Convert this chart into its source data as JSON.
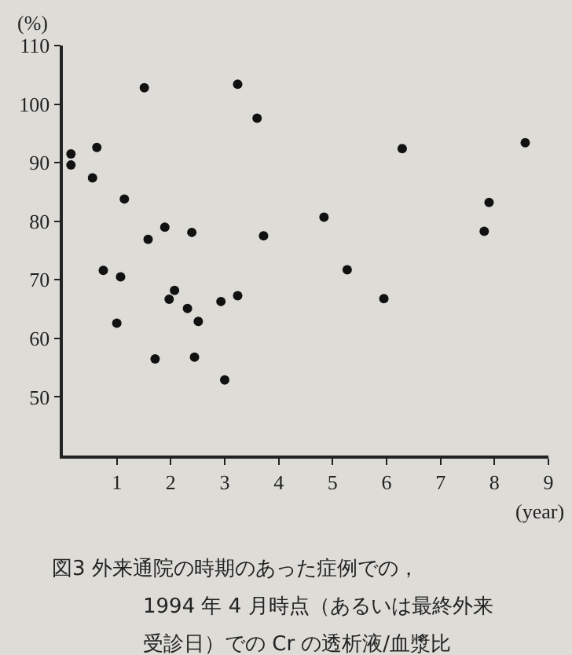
{
  "chart_data": {
    "type": "scatter",
    "x": [
      0.15,
      0.15,
      0.63,
      0.55,
      1.14,
      0.75,
      1.07,
      1.0,
      1.51,
      1.58,
      1.89,
      1.71,
      1.97,
      2.07,
      2.39,
      2.31,
      2.51,
      2.44,
      2.93,
      3.0,
      3.24,
      3.24,
      3.6,
      3.72,
      4.84,
      5.27,
      5.95,
      6.29,
      7.81,
      7.9,
      8.57
    ],
    "values": [
      91.5,
      89.6,
      92.6,
      87.4,
      83.8,
      71.6,
      70.5,
      62.6,
      102.8,
      76.9,
      79.0,
      56.5,
      66.7,
      68.2,
      78.1,
      65.1,
      62.9,
      56.8,
      66.3,
      52.9,
      103.4,
      67.3,
      97.6,
      77.5,
      80.7,
      71.7,
      66.8,
      92.4,
      78.3,
      83.2,
      93.4
    ],
    "color": "#111111",
    "marker": "circle",
    "xlim": [
      0,
      9
    ],
    "xticks": [
      1,
      2,
      3,
      4,
      5,
      6,
      7,
      8,
      9
    ],
    "ylim": [
      40,
      110
    ],
    "yticks": [
      50,
      60,
      70,
      80,
      90,
      100,
      110
    ],
    "xlabel": "(year)",
    "ylabel": "(%)",
    "grid": false,
    "legend": false,
    "annotations": [
      "図3 外来通院の時期のあった症例での，",
      "1994 年 4 月時点（あるいは最終外来",
      "受診日）での Cr の透析液/血漿比"
    ]
  }
}
